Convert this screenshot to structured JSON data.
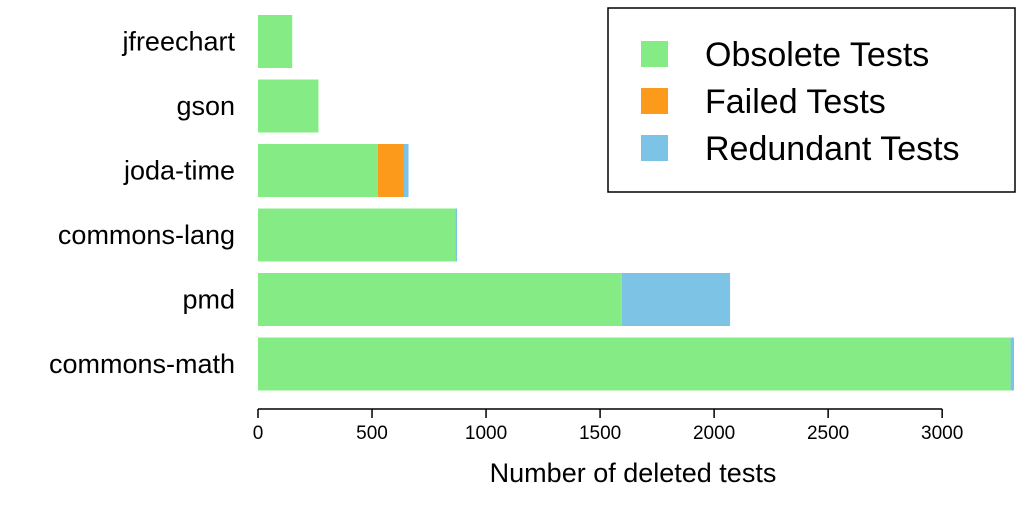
{
  "chart_data": {
    "type": "bar",
    "orientation": "horizontal",
    "stacked": true,
    "categories": [
      "jfreechart",
      "gson",
      "joda-time",
      "commons-lang",
      "pmd",
      "commons-math"
    ],
    "series": [
      {
        "name": "Obsolete Tests",
        "color": "#85ec85",
        "values": [
          150,
          265,
          525,
          865,
          1595,
          3300
        ]
      },
      {
        "name": "Failed Tests",
        "color": "#fb9a1b",
        "values": [
          0,
          0,
          115,
          0,
          0,
          0
        ]
      },
      {
        "name": "Redundant Tests",
        "color": "#7cc3e6",
        "values": [
          0,
          0,
          20,
          8,
          475,
          15
        ]
      }
    ],
    "xlabel": "Number of deleted tests",
    "ylabel": "",
    "xlim": [
      0,
      3315
    ],
    "xticks": [
      0,
      500,
      1000,
      1500,
      2000,
      2500,
      3000
    ],
    "grid": false,
    "legend": "top-right"
  }
}
